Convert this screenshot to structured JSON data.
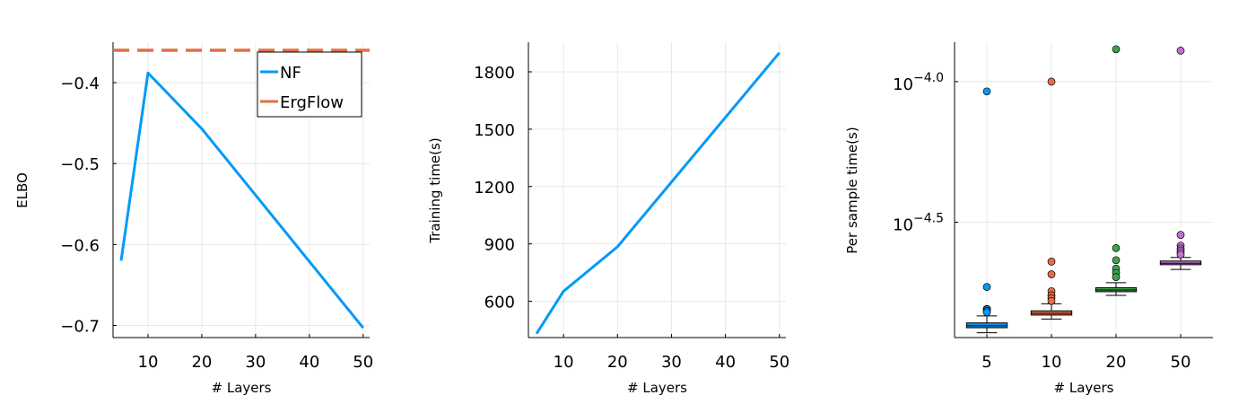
{
  "chart_data": [
    {
      "type": "line",
      "xlabel": "# Layers",
      "ylabel": "ELBO",
      "xlim": [
        3.5,
        51.2
      ],
      "ylim": [
        -0.715,
        -0.35
      ],
      "xticks": [
        10,
        20,
        30,
        40,
        50
      ],
      "xtick_labels": [
        "10",
        "20",
        "30",
        "40",
        "50"
      ],
      "yticks": [
        -0.4,
        -0.5,
        -0.6,
        -0.7
      ],
      "ytick_labels": [
        "−0.4",
        "−0.5",
        "−0.6",
        "−0.7"
      ],
      "grid": true,
      "legend_position": "top-right",
      "series": [
        {
          "name": "NF",
          "x": [
            5,
            10,
            20,
            50
          ],
          "y": [
            -0.62,
            -0.388,
            -0.457,
            -0.703
          ],
          "color": "#009af9",
          "style": "solid"
        },
        {
          "name": "ErgFlow",
          "y_constant": -0.36,
          "color": "#e26f46",
          "style": "dashed"
        }
      ]
    },
    {
      "type": "line",
      "xlabel": "# Layers",
      "ylabel": "Training time(s)",
      "xlim": [
        3.5,
        51.2
      ],
      "ylim": [
        410,
        1955
      ],
      "xticks": [
        10,
        20,
        30,
        40,
        50
      ],
      "xtick_labels": [
        "10",
        "20",
        "30",
        "40",
        "50"
      ],
      "yticks": [
        600,
        900,
        1200,
        1500,
        1800
      ],
      "ytick_labels": [
        "600",
        "900",
        "1200",
        "1500",
        "1800"
      ],
      "grid": true,
      "series": [
        {
          "x": [
            5,
            10,
            20,
            50
          ],
          "y": [
            430,
            652,
            885,
            1900
          ],
          "color": "#009af9",
          "style": "solid"
        }
      ]
    },
    {
      "type": "box",
      "xlabel": "# Layers",
      "ylabel": "Per sample time(s)",
      "yscale": "log10",
      "ylim_log10": [
        -4.91,
        -3.86
      ],
      "yticks_log10": [
        -4.0,
        -4.5
      ],
      "ytick_labels": [
        {
          "base": "10",
          "exp": "−4.0"
        },
        {
          "base": "10",
          "exp": "−4.5"
        }
      ],
      "grid": true,
      "categories": [
        "5",
        "10",
        "20",
        "50"
      ],
      "boxes": [
        {
          "category": "5",
          "color": "#009af9",
          "q1": -4.875,
          "median": -4.868,
          "q3": -4.858,
          "whisker_low": -4.893,
          "whisker_high": -4.833,
          "outliers": [
            -4.73,
            -4.808,
            -4.81,
            -4.815,
            -4.82,
            -4.035
          ]
        },
        {
          "category": "10",
          "color": "#e26f46",
          "q1": -4.83,
          "median": -4.824,
          "q3": -4.815,
          "whisker_low": -4.844,
          "whisker_high": -4.79,
          "outliers": [
            -4.64,
            -4.685,
            -4.745,
            -4.76,
            -4.77,
            -4.78,
            -4.0
          ]
        },
        {
          "category": "20",
          "color": "#3da44d",
          "q1": -4.747,
          "median": -4.741,
          "q3": -4.733,
          "whisker_low": -4.76,
          "whisker_high": -4.715,
          "outliers": [
            -4.592,
            -4.635,
            -4.665,
            -4.68,
            -4.695,
            -3.885
          ]
        },
        {
          "category": "50",
          "color": "#c271d2",
          "q1": -4.651,
          "median": -4.646,
          "q3": -4.638,
          "whisker_low": -4.668,
          "whisker_high": -4.625,
          "outliers": [
            -4.545,
            -4.583,
            -4.593,
            -4.6,
            -4.607,
            -4.615,
            -3.89
          ]
        }
      ]
    }
  ]
}
